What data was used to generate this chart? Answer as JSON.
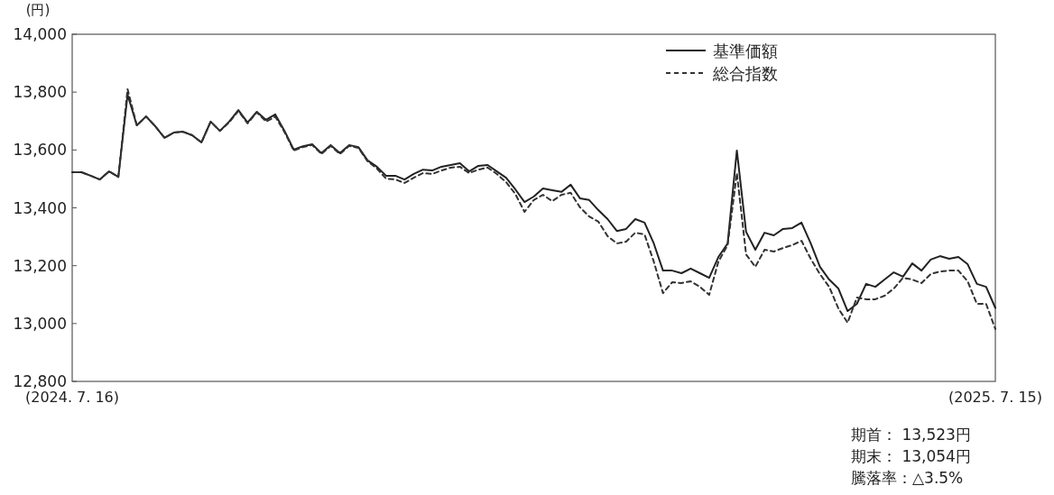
{
  "chart_data": {
    "type": "line",
    "ylabel": "(円)",
    "categories": [
      "(2024. 7. 16)",
      null,
      null,
      null,
      null,
      null,
      null,
      null,
      null,
      null,
      null,
      null,
      null,
      null,
      null,
      null,
      null,
      null,
      null,
      null,
      null,
      null,
      null,
      null,
      null,
      null,
      null,
      null,
      null,
      null,
      null,
      null,
      null,
      null,
      null,
      null,
      null,
      null,
      null,
      null,
      null,
      null,
      null,
      null,
      null,
      null,
      null,
      null,
      null,
      null,
      null,
      null,
      null,
      null,
      null,
      null,
      null,
      null,
      null,
      null,
      null,
      null,
      null,
      null,
      null,
      null,
      null,
      null,
      null,
      null,
      null,
      null,
      null,
      null,
      null,
      null,
      null,
      null,
      null,
      null,
      null,
      null,
      null,
      null,
      null,
      null,
      null,
      null,
      null,
      null,
      null,
      null,
      null,
      null,
      null,
      null,
      null,
      null,
      null,
      null,
      "(2025. 7. 15)"
    ],
    "ylim": [
      12800,
      14000
    ],
    "yticks": [
      {
        "value": 12800,
        "label": "12,800"
      },
      {
        "value": 13000,
        "label": "13,000"
      },
      {
        "value": 13200,
        "label": "13,200"
      },
      {
        "value": 13400,
        "label": "13,400"
      },
      {
        "value": 13600,
        "label": "13,600"
      },
      {
        "value": 13800,
        "label": "13,800"
      },
      {
        "value": 14000,
        "label": "14,000"
      }
    ],
    "legend": "top right",
    "marker": "none",
    "series": [
      {
        "name": "基準価額",
        "color": "#222222",
        "line_style": "solid",
        "values": [
          13523,
          13523,
          13511,
          13498,
          13526,
          13507,
          13791,
          13685,
          13716,
          13682,
          13642,
          13660,
          13663,
          13651,
          13626,
          13698,
          13666,
          13698,
          13738,
          13695,
          13732,
          13704,
          13723,
          13666,
          13601,
          13613,
          13620,
          13589,
          13617,
          13589,
          13617,
          13610,
          13564,
          13542,
          13511,
          13511,
          13498,
          13517,
          13532,
          13529,
          13542,
          13548,
          13554,
          13526,
          13545,
          13548,
          13526,
          13504,
          13464,
          13420,
          13439,
          13467,
          13461,
          13455,
          13480,
          13433,
          13427,
          13392,
          13361,
          13320,
          13327,
          13361,
          13349,
          13277,
          13183,
          13183,
          13174,
          13190,
          13174,
          13158,
          13230,
          13277,
          13598,
          13317,
          13255,
          13314,
          13305,
          13327,
          13330,
          13349,
          13277,
          13196,
          13152,
          13121,
          13043,
          13068,
          13137,
          13127,
          13152,
          13177,
          13162,
          13208,
          13183,
          13221,
          13233,
          13224,
          13230,
          13205,
          13137,
          13127,
          13054
        ]
      },
      {
        "name": "総合指数",
        "color": "#333333",
        "line_style": "dashed",
        "values": [
          13523,
          13523,
          13511,
          13498,
          13526,
          13507,
          13810,
          13685,
          13716,
          13682,
          13642,
          13660,
          13663,
          13651,
          13626,
          13698,
          13666,
          13695,
          13735,
          13692,
          13730,
          13698,
          13715,
          13662,
          13598,
          13610,
          13617,
          13586,
          13614,
          13586,
          13614,
          13607,
          13561,
          13536,
          13501,
          13498,
          13486,
          13504,
          13520,
          13517,
          13529,
          13539,
          13542,
          13520,
          13532,
          13539,
          13517,
          13489,
          13448,
          13386,
          13427,
          13445,
          13423,
          13445,
          13452,
          13402,
          13370,
          13352,
          13302,
          13277,
          13283,
          13314,
          13308,
          13214,
          13105,
          13143,
          13140,
          13146,
          13127,
          13099,
          13214,
          13271,
          13520,
          13239,
          13196,
          13255,
          13249,
          13261,
          13271,
          13286,
          13224,
          13171,
          13127,
          13052,
          13003,
          13090,
          13084,
          13084,
          13096,
          13121,
          13158,
          13152,
          13140,
          13171,
          13180,
          13183,
          13183,
          13146,
          13068,
          13068,
          12981
        ]
      }
    ],
    "annotations": [
      "期首： 13,523円",
      "期末： 13,054円",
      "騰落率：△3.5%"
    ]
  }
}
